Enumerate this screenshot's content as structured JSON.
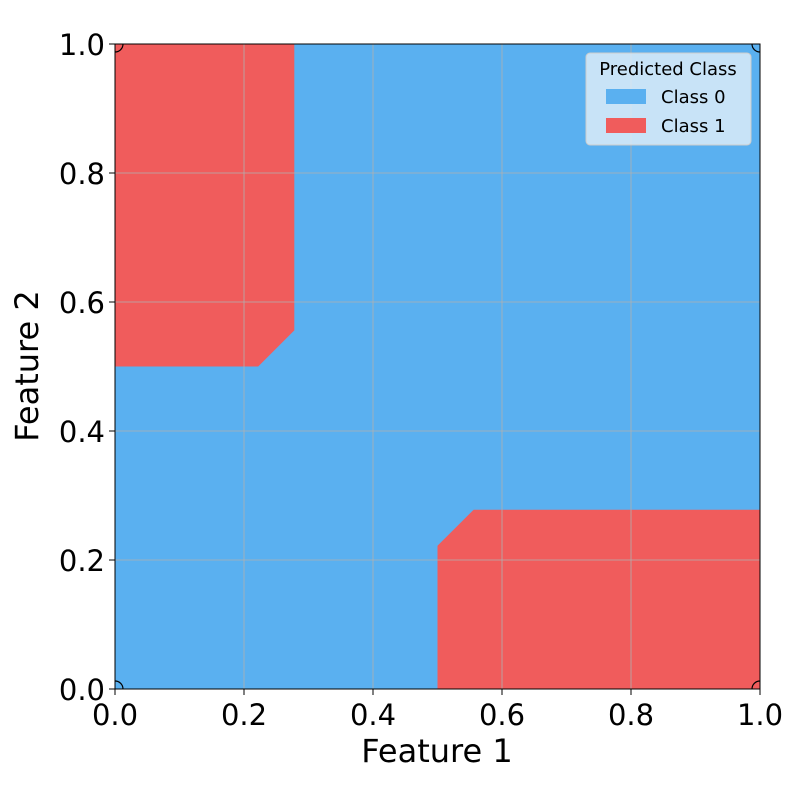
{
  "chart_data": {
    "type": "heatmap",
    "title": "",
    "xlabel": "Feature 1",
    "ylabel": "Feature 2",
    "xlim": [
      0.0,
      1.0
    ],
    "ylim": [
      0.0,
      1.0
    ],
    "xticks": [
      "0.0",
      "0.2",
      "0.4",
      "0.6",
      "0.8",
      "1.0"
    ],
    "yticks": [
      "0.0",
      "0.2",
      "0.4",
      "0.6",
      "0.8",
      "1.0"
    ],
    "grid": true,
    "legend": {
      "title": "Predicted Class",
      "placement": "top-right",
      "entries": [
        {
          "label": "Class 0",
          "color": "#5ab0f0"
        },
        {
          "label": "Class 1",
          "color": "#f05c5c"
        }
      ]
    },
    "background_class": "Class 0",
    "regions": [
      {
        "class": "Class 1",
        "polygon": [
          [
            0.0,
            1.0
          ],
          [
            0.278,
            1.0
          ],
          [
            0.278,
            0.556
          ],
          [
            0.222,
            0.5
          ],
          [
            0.0,
            0.5
          ]
        ]
      },
      {
        "class": "Class 1",
        "polygon": [
          [
            0.5,
            0.0
          ],
          [
            1.0,
            0.0
          ],
          [
            1.0,
            0.278
          ],
          [
            0.556,
            0.278
          ],
          [
            0.5,
            0.222
          ]
        ]
      }
    ],
    "corner_points": [
      [
        0.0,
        0.0
      ],
      [
        0.0,
        1.0
      ],
      [
        1.0,
        1.0
      ],
      [
        1.0,
        0.0
      ]
    ]
  }
}
